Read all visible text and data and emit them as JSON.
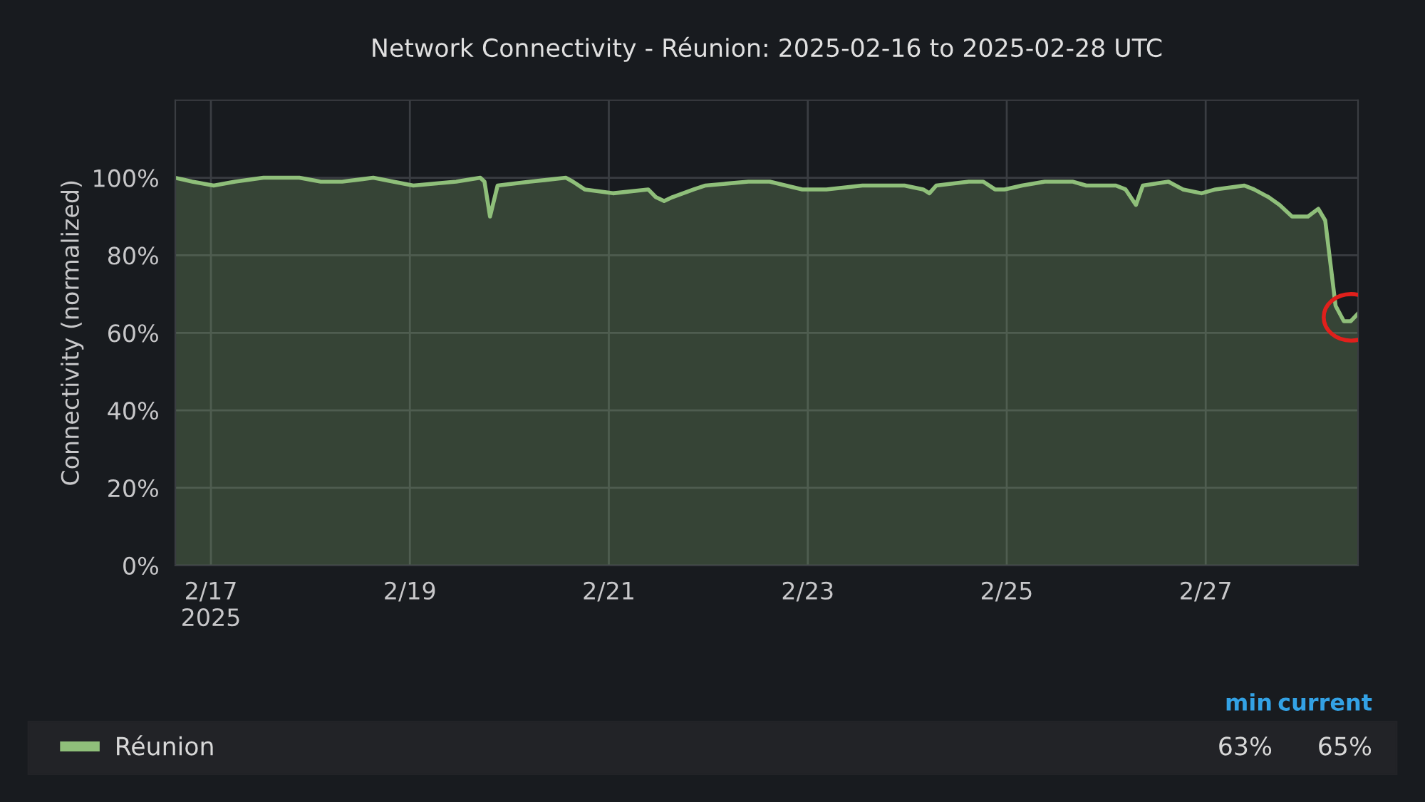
{
  "chart_data": {
    "type": "area",
    "title": "Network Connectivity - Réunion: 2025-02-16 to 2025-02-28 UTC",
    "ylabel": "Connectivity (normalized)",
    "x": [
      "2025-02-16T15:24",
      "2025-02-16T19:30",
      "2025-02-17T00:40",
      "2025-02-17T05:50",
      "2025-02-17T12:40",
      "2025-02-17T17:50",
      "2025-02-17T21:20",
      "2025-02-18T02:30",
      "2025-02-18T07:40",
      "2025-02-18T15:10",
      "2025-02-19T00:50",
      "2025-02-19T11:10",
      "2025-02-19T17:00",
      "2025-02-19T18:00",
      "2025-02-19T19:20",
      "2025-02-19T21:10",
      "2025-02-20T05:00",
      "2025-02-20T13:40",
      "2025-02-20T15:20",
      "2025-02-20T18:10",
      "2025-02-21T01:00",
      "2025-02-21T09:30",
      "2025-02-21T11:20",
      "2025-02-21T13:20",
      "2025-02-21T15:20",
      "2025-02-21T20:30",
      "2025-02-21T23:20",
      "2025-02-22T09:40",
      "2025-02-22T14:50",
      "2025-02-22T22:40",
      "2025-02-23T04:30",
      "2025-02-23T13:10",
      "2025-02-23T23:20",
      "2025-02-24T03:50",
      "2025-02-24T05:20",
      "2025-02-24T07:00",
      "2025-02-24T14:50",
      "2025-02-24T18:20",
      "2025-02-24T21:10",
      "2025-02-24T23:30",
      "2025-02-25T03:40",
      "2025-02-25T09:10",
      "2025-02-25T16:00",
      "2025-02-25T19:10",
      "2025-02-26T02:20",
      "2025-02-26T04:40",
      "2025-02-26T07:10",
      "2025-02-26T08:50",
      "2025-02-26T15:00",
      "2025-02-26T18:30",
      "2025-02-26T23:00",
      "2025-02-27T02:20",
      "2025-02-27T09:20",
      "2025-02-27T11:40",
      "2025-02-27T15:10",
      "2025-02-27T17:50",
      "2025-02-27T20:50",
      "2025-02-28T00:40",
      "2025-02-28T03:10",
      "2025-02-28T04:50",
      "2025-02-28T07:20",
      "2025-02-28T09:20",
      "2025-02-28T11:00",
      "2025-02-28T12:45"
    ],
    "series": [
      {
        "name": "Réunion",
        "color": "#8fbf7a",
        "values": [
          100,
          99,
          98,
          99,
          100,
          100,
          100,
          99,
          99,
          100,
          98,
          99,
          100,
          99,
          90,
          98,
          99,
          100,
          99,
          97,
          96,
          97,
          95,
          94,
          95,
          97,
          98,
          99,
          99,
          97,
          97,
          98,
          98,
          97,
          96,
          98,
          99,
          99,
          97,
          97,
          98,
          99,
          99,
          98,
          98,
          97,
          93,
          98,
          99,
          97,
          96,
          97,
          98,
          97,
          95,
          93,
          90,
          90,
          92,
          89,
          67,
          63,
          63,
          65
        ]
      }
    ],
    "xlim": [
      "2025-02-16T15:24",
      "2025-02-28T12:45"
    ],
    "xticks": [
      {
        "value": "2025-02-17",
        "label": "2/17\n2025"
      },
      {
        "value": "2025-02-19",
        "label": "2/19"
      },
      {
        "value": "2025-02-21",
        "label": "2/21"
      },
      {
        "value": "2025-02-23",
        "label": "2/23"
      },
      {
        "value": "2025-02-25",
        "label": "2/25"
      },
      {
        "value": "2025-02-27",
        "label": "2/27"
      }
    ],
    "ylim": [
      0,
      120
    ],
    "yticks": [
      {
        "value": 0,
        "label": "0%"
      },
      {
        "value": 20,
        "label": "20%"
      },
      {
        "value": 40,
        "label": "40%"
      },
      {
        "value": 60,
        "label": "60%"
      },
      {
        "value": 80,
        "label": "80%"
      },
      {
        "value": 100,
        "label": "100%"
      }
    ],
    "grid": true,
    "legend": "bottom",
    "annotations": [
      "min",
      "current",
      "63%",
      "65%"
    ]
  }
}
